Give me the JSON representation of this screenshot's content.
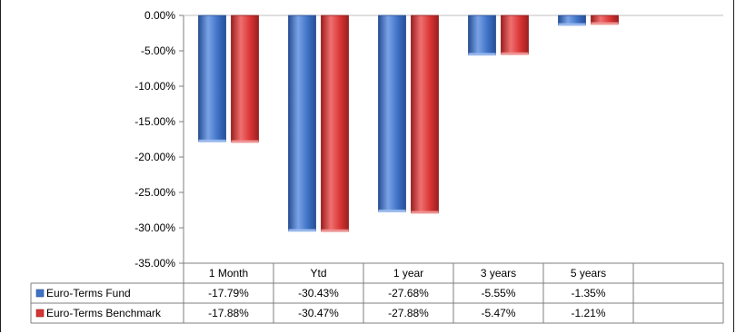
{
  "chart_data": {
    "type": "bar",
    "categories": [
      "1 Month",
      "Ytd",
      "1 year",
      "3 years",
      "5 years"
    ],
    "series": [
      {
        "name": "Euro-Terms Fund",
        "values": [
          -17.79,
          -30.43,
          -27.68,
          -5.55,
          -1.35
        ],
        "labels": [
          "-17.79%",
          "-30.43%",
          "-27.68%",
          "-5.55%",
          "-1.35%"
        ],
        "color": "#3f72c6"
      },
      {
        "name": "Euro-Terms Benchmark",
        "values": [
          -17.88,
          -30.47,
          -27.88,
          -5.47,
          -1.21
        ],
        "labels": [
          "-17.88%",
          "-30.47%",
          "-27.88%",
          "-5.47%",
          "-1.21%"
        ],
        "color": "#d83434"
      }
    ],
    "yticks": [
      "0.00%",
      "-5.00%",
      "-10.00%",
      "-15.00%",
      "-20.00%",
      "-25.00%",
      "-30.00%",
      "-35.00%"
    ],
    "ylim": [
      -35,
      0
    ],
    "ylabel_format": "percent",
    "grid": false,
    "legend": "data-table",
    "table_blank_columns": 1
  }
}
